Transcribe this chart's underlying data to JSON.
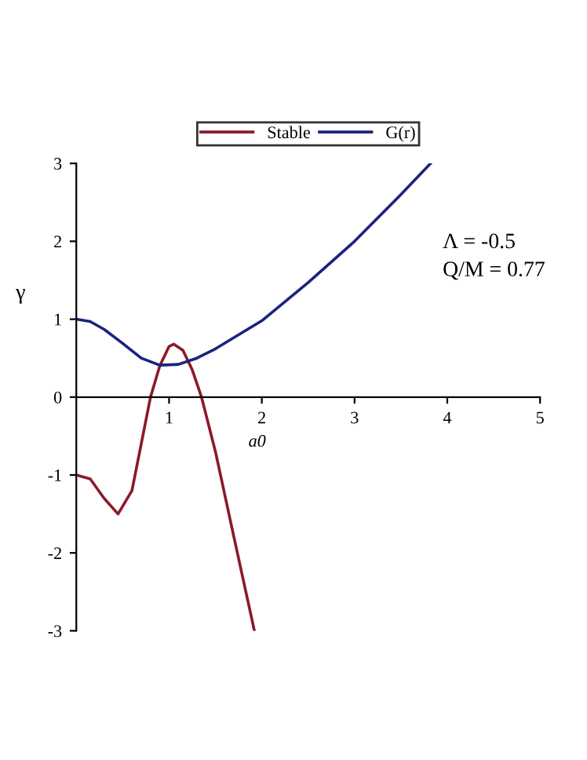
{
  "chart_data": {
    "type": "line",
    "xlabel": "a0",
    "ylabel": "γ",
    "xlim": [
      0,
      5
    ],
    "ylim": [
      -3,
      3
    ],
    "xticks": [
      1,
      2,
      3,
      4,
      5
    ],
    "yticks": [
      -3,
      -2,
      -1,
      0,
      1,
      2,
      3
    ],
    "grid": false,
    "legend": "top",
    "marker": "none",
    "line_style": "solid",
    "annotations": [
      "Λ = -0.5",
      "Q/M = 0.77"
    ],
    "series": [
      {
        "name": "Stable",
        "color": "#8b1a2b",
        "x": [
          0,
          0.15,
          0.3,
          0.45,
          0.6,
          0.7,
          0.8,
          0.9,
          1.0,
          1.05,
          1.15,
          1.25,
          1.35,
          1.5,
          1.7,
          1.92
        ],
        "values": [
          -1,
          -1.05,
          -1.3,
          -1.5,
          -1.2,
          -0.6,
          0,
          0.4,
          0.65,
          0.68,
          0.6,
          0.35,
          0,
          -0.7,
          -1.8,
          -3
        ]
      },
      {
        "name": "G(r)",
        "color": "#1a237e",
        "x": [
          0,
          0.15,
          0.3,
          0.5,
          0.7,
          0.9,
          1.1,
          1.3,
          1.5,
          2.0,
          2.5,
          3.0,
          3.5,
          3.82
        ],
        "values": [
          1,
          0.97,
          0.87,
          0.69,
          0.5,
          0.41,
          0.42,
          0.5,
          0.62,
          0.98,
          1.47,
          2.0,
          2.6,
          3
        ]
      }
    ]
  }
}
